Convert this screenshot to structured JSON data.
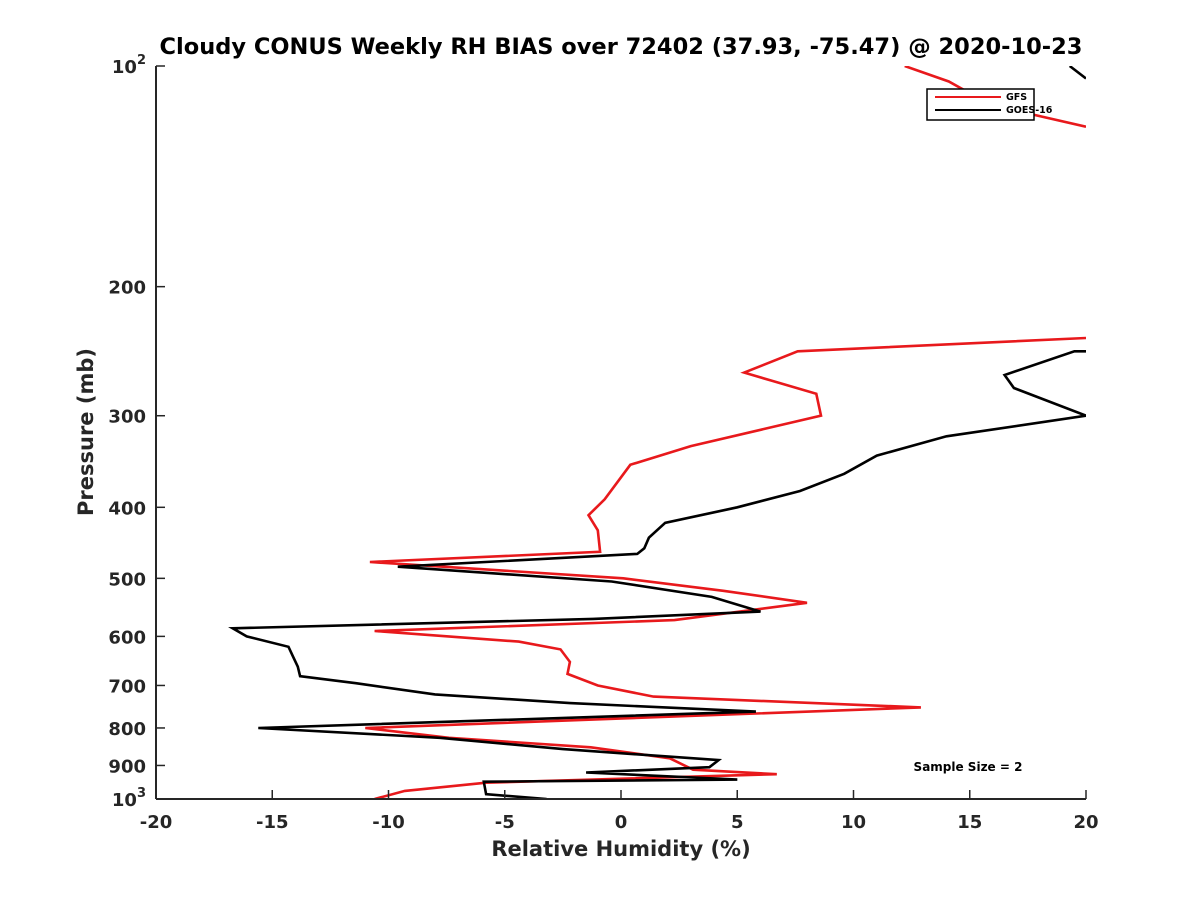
{
  "chart_data": {
    "type": "line",
    "title": "Cloudy CONUS Weekly RH BIAS over 72402 (37.93, -75.47) @ 2020-10-23",
    "xlabel": "Relative Humidity (%)",
    "ylabel": "Pressure (mb)",
    "xlim": [
      -20,
      20
    ],
    "ylim": [
      100,
      1000
    ],
    "y_scale": "log",
    "y_reversed": true,
    "grid": false,
    "legend_position": "top-right",
    "x_ticks": [
      -20,
      -15,
      -10,
      -5,
      0,
      5,
      10,
      15,
      20
    ],
    "x_tick_labels": [
      "-20",
      "-15",
      "-10",
      "-5",
      "0",
      "5",
      "10",
      "15",
      "20"
    ],
    "y_ticks": [
      {
        "value": 100,
        "base": "10",
        "exp": "2"
      },
      {
        "value": 200,
        "label": "200"
      },
      {
        "value": 300,
        "label": "300"
      },
      {
        "value": 400,
        "label": "400"
      },
      {
        "value": 500,
        "label": "500"
      },
      {
        "value": 600,
        "label": "600"
      },
      {
        "value": 700,
        "label": "700"
      },
      {
        "value": 800,
        "label": "800"
      },
      {
        "value": 900,
        "label": "900"
      },
      {
        "value": 1000,
        "base": "10",
        "exp": "3"
      }
    ],
    "annotation": "Sample Size = 2",
    "series": [
      {
        "name": "GFS",
        "color": "#e8191c",
        "points": [
          [
            -10.6,
            1000
          ],
          [
            -9.3,
            975
          ],
          [
            -5.8,
            950
          ],
          [
            6.7,
            925
          ],
          [
            3.1,
            912
          ],
          [
            2.1,
            880
          ],
          [
            -1.3,
            850
          ],
          [
            -7.4,
            825
          ],
          [
            -11.0,
            800
          ],
          [
            12.9,
            750
          ],
          [
            1.4,
            725
          ],
          [
            -1.0,
            700
          ],
          [
            -2.3,
            675
          ],
          [
            -2.2,
            650
          ],
          [
            -2.6,
            625
          ],
          [
            -4.4,
            610
          ],
          [
            -10.6,
            590
          ],
          [
            2.3,
            570
          ],
          [
            8.0,
            540
          ],
          [
            4.4,
            520
          ],
          [
            0.1,
            500
          ],
          [
            -10.8,
            475
          ],
          [
            -0.9,
            460
          ],
          [
            -1.0,
            430
          ],
          [
            -1.4,
            410
          ],
          [
            -0.7,
            390
          ],
          [
            0.4,
            350
          ],
          [
            3.0,
            330
          ],
          [
            8.6,
            300
          ],
          [
            8.4,
            280
          ],
          [
            5.3,
            262
          ],
          [
            7.6,
            245
          ],
          [
            20.0,
            235
          ]
        ],
        "top_segment": [
          [
            12.2,
            100
          ],
          [
            14.1,
            105
          ],
          [
            15.9,
            113
          ],
          [
            20.0,
            121
          ]
        ]
      },
      {
        "name": "GOES-16",
        "color": "#000000",
        "points": [
          [
            -3.2,
            1000
          ],
          [
            -5.8,
            985
          ],
          [
            -5.9,
            947
          ],
          [
            5.0,
            941
          ],
          [
            -1.5,
            920
          ],
          [
            3.8,
            905
          ],
          [
            4.2,
            885
          ],
          [
            -2.5,
            855
          ],
          [
            -7.8,
            825
          ],
          [
            -15.6,
            800
          ],
          [
            5.8,
            760
          ],
          [
            -2.2,
            740
          ],
          [
            -8.0,
            720
          ],
          [
            -11.4,
            695
          ],
          [
            -13.8,
            680
          ],
          [
            -13.9,
            660
          ],
          [
            -14.1,
            640
          ],
          [
            -14.3,
            620
          ],
          [
            -16.1,
            600
          ],
          [
            -16.7,
            585
          ],
          [
            -1.2,
            568
          ],
          [
            6.0,
            555
          ],
          [
            3.9,
            530
          ],
          [
            -0.4,
            505
          ],
          [
            -9.6,
            482
          ],
          [
            0.7,
            463
          ],
          [
            1.0,
            455
          ],
          [
            1.2,
            440
          ],
          [
            1.9,
            420
          ],
          [
            5.0,
            400
          ],
          [
            7.7,
            380
          ],
          [
            9.6,
            360
          ],
          [
            11.0,
            340
          ],
          [
            14.0,
            320
          ],
          [
            20.0,
            300
          ],
          [
            16.9,
            275
          ],
          [
            16.5,
            264
          ],
          [
            19.5,
            245
          ],
          [
            20.0,
            245
          ]
        ],
        "top_segment": [
          [
            19.3,
            100
          ],
          [
            20.0,
            104
          ]
        ]
      }
    ]
  }
}
